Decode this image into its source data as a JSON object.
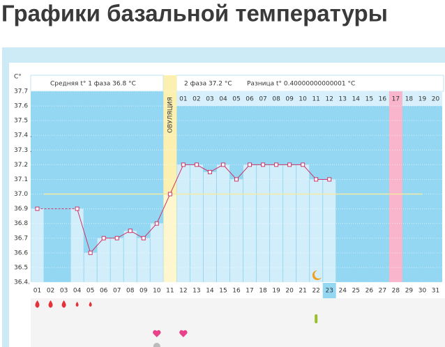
{
  "title": "Графики базальной температуры",
  "chart_data": {
    "type": "line",
    "y_axis_label": "C°",
    "phase1_label": "Средняя t° 1 фаза 36.8 °C",
    "phase2_label": "2 фаза 37.2 °C",
    "difference_label": "Разница t° 0.40000000000001 °C",
    "ovulation_label": "ОВУЛЯЦИЯ",
    "categories": [
      "01",
      "02",
      "03",
      "04",
      "05",
      "06",
      "07",
      "08",
      "09",
      "10",
      "11",
      "12",
      "13",
      "14",
      "15",
      "16",
      "17",
      "18",
      "19",
      "20",
      "21",
      "22",
      "23",
      "24",
      "25",
      "26",
      "27",
      "28",
      "29",
      "30",
      "31"
    ],
    "phase2_days": [
      "01",
      "02",
      "03",
      "04",
      "05",
      "06",
      "07",
      "08",
      "09",
      "10",
      "11",
      "12",
      "13",
      "14",
      "15",
      "16",
      "17",
      "18",
      "19",
      "20"
    ],
    "values": [
      36.9,
      null,
      null,
      36.9,
      36.6,
      36.7,
      36.7,
      36.75,
      36.7,
      36.8,
      37.0,
      37.2,
      37.2,
      37.15,
      37.2,
      37.1,
      37.2,
      37.2,
      37.2,
      37.2,
      37.2,
      37.1,
      37.1,
      null,
      null,
      null,
      null,
      null,
      null,
      null,
      null
    ],
    "color": "#cc3366",
    "coverline": 37.0,
    "ylim": [
      36.4,
      37.7
    ],
    "yticks": [
      {
        "value": 36.4,
        "label": "36.4."
      },
      36.5,
      36.6,
      36.7,
      36.8,
      36.9,
      {
        "value": 37.0,
        "label": "37.0"
      },
      37.1,
      37.2,
      {
        "value": 37.3,
        "label": "37.3 ."
      },
      {
        "value": 37.4,
        "label": "37.4 ."
      },
      37.5,
      37.6,
      37.7
    ]
  }
}
